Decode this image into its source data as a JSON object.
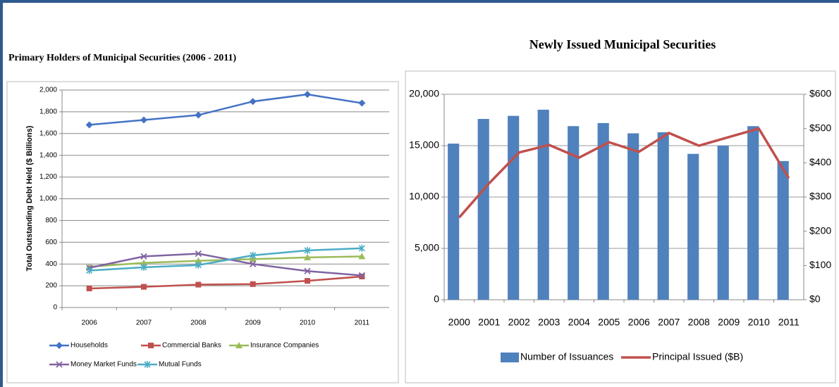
{
  "chart_data": [
    {
      "type": "line",
      "title": "Primary Holders of Municipal Securities (2006 - 2011)",
      "y_label": "Total Outstanding Debt Held ($ Billions)",
      "categories": [
        "2006",
        "2007",
        "2008",
        "2009",
        "2010",
        "2011"
      ],
      "ylim": [
        0,
        2000
      ],
      "yticks": [
        0,
        200,
        400,
        600,
        800,
        {
          "value": 1000,
          "label": "1,000"
        },
        {
          "value": 1200,
          "label": "1,200"
        },
        {
          "value": 1400,
          "label": "1,400"
        },
        {
          "value": 1600,
          "label": "1,600"
        },
        {
          "value": 1800,
          "label": "1,800"
        },
        {
          "value": 2000,
          "label": "2,000"
        }
      ],
      "grid": true,
      "legend": "bottom",
      "series": [
        {
          "name": "Households",
          "color": "#4472c4",
          "marker": "diamond",
          "values": [
            1680,
            1725,
            1770,
            1895,
            1960,
            1880
          ]
        },
        {
          "name": "Commercial Banks",
          "color": "#c0504d",
          "marker": "square",
          "values": [
            175,
            190,
            210,
            215,
            245,
            285
          ]
        },
        {
          "name": "Insurance Companies",
          "color": "#9bbb59",
          "marker": "triangle",
          "values": [
            375,
            410,
            430,
            445,
            460,
            470
          ]
        },
        {
          "name": "Money Market Funds",
          "color": "#8064a2",
          "marker": "x",
          "values": [
            365,
            470,
            495,
            400,
            335,
            295
          ]
        },
        {
          "name": "Mutual Funds",
          "color": "#4bacc6",
          "marker": "star",
          "values": [
            340,
            370,
            390,
            480,
            525,
            545
          ]
        }
      ]
    },
    {
      "type": "bar",
      "title": "Newly Issued Municipal Securities",
      "categories": [
        "2000",
        "2001",
        "2002",
        "2003",
        "2004",
        "2005",
        "2006",
        "2007",
        "2008",
        "2009",
        "2010",
        "2011"
      ],
      "ylim": [
        0,
        20000
      ],
      "yticks": [
        0,
        {
          "value": 5000,
          "label": "5,000"
        },
        {
          "value": 10000,
          "label": "10,000"
        },
        {
          "value": 15000,
          "label": "15,000"
        },
        {
          "value": 20000,
          "label": "20,000"
        }
      ],
      "y2lim": [
        0,
        600
      ],
      "y2ticks": [
        {
          "value": 0,
          "label": "$0"
        },
        {
          "value": 100,
          "label": "$100"
        },
        {
          "value": 200,
          "label": "$200"
        },
        {
          "value": 300,
          "label": "$300"
        },
        {
          "value": 400,
          "label": "$400"
        },
        {
          "value": 500,
          "label": "$500"
        },
        {
          "value": 600,
          "label": "$600"
        }
      ],
      "grid": true,
      "legend": "bottom",
      "series": [
        {
          "name": "Number of Issuances",
          "color": "#4f81bd",
          "values": [
            15200,
            17600,
            17900,
            18500,
            16900,
            17200,
            16200,
            16300,
            14200,
            15000,
            16900,
            13500
          ]
        },
        {
          "name": "Principal Issued ($B)",
          "color": "#c0504d",
          "type": "line",
          "axis": "y2",
          "values": [
            240,
            340,
            430,
            452,
            415,
            460,
            432,
            487,
            450,
            475,
            500,
            355
          ]
        }
      ]
    }
  ]
}
